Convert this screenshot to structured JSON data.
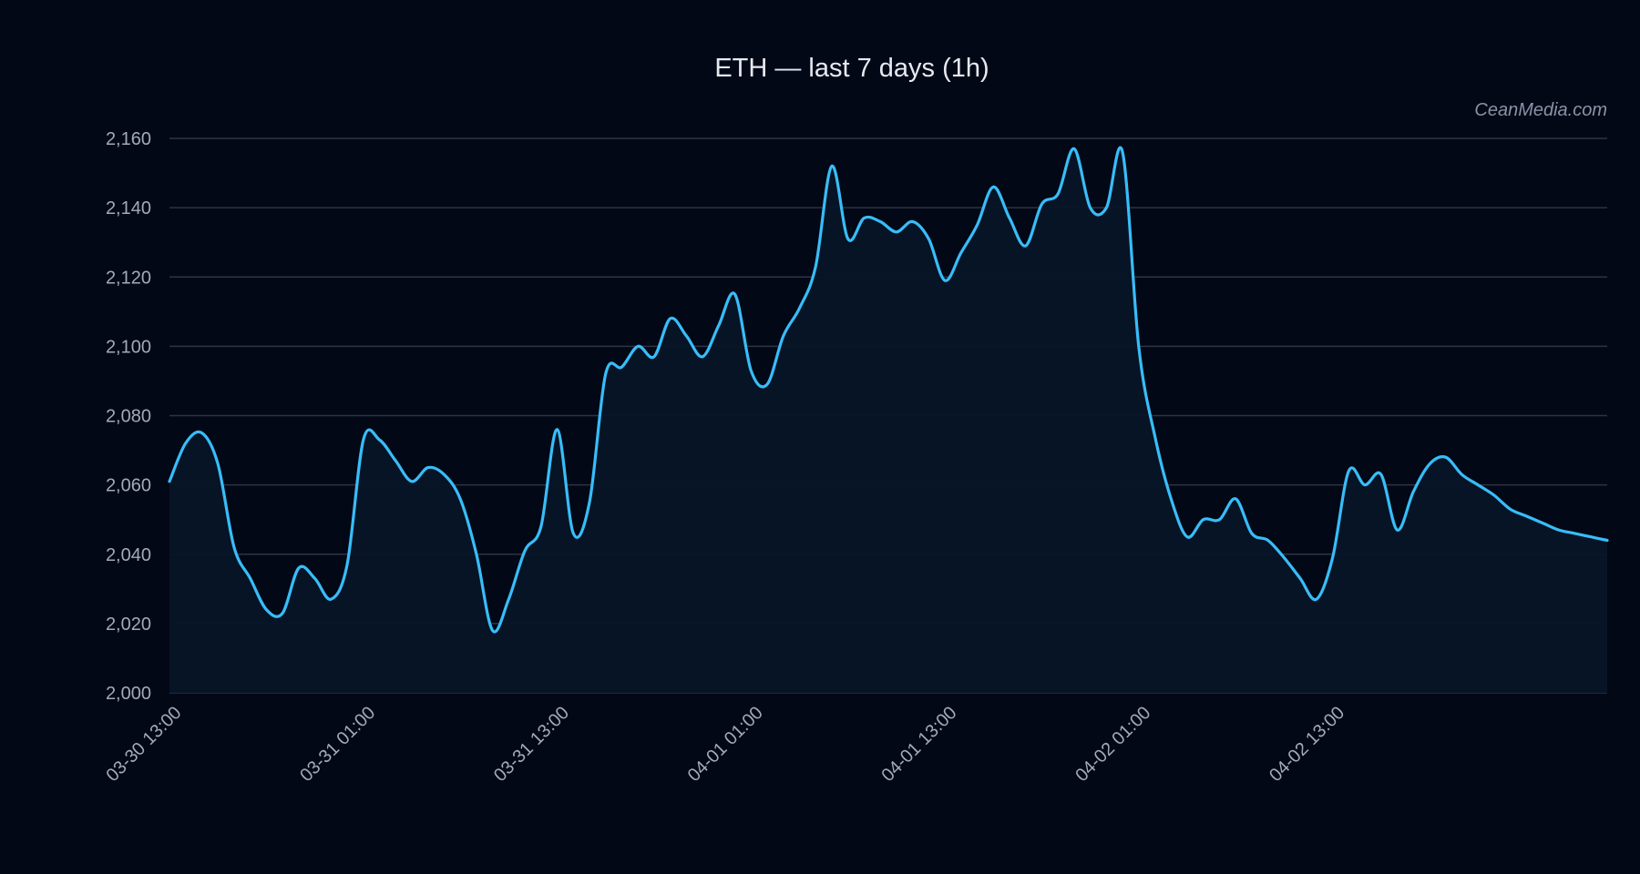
{
  "watermark": "CeanMedia.com",
  "colors": {
    "background": "#030817",
    "line": "#38bdf8",
    "area_fill": "#071527",
    "grid": "#2b3445"
  },
  "chart_data": {
    "type": "area",
    "title": "ETH — last 7 days (1h)",
    "xlabel": "",
    "ylabel": "",
    "ylim": [
      2000,
      2160
    ],
    "yticks": [
      2000,
      2020,
      2040,
      2060,
      2080,
      2100,
      2120,
      2140,
      2160
    ],
    "ytick_labels": [
      "2,000",
      "2,020",
      "2,040",
      "2,060",
      "2,080",
      "2,100",
      "2,120",
      "2,140",
      "2,160"
    ],
    "xlim": [
      "03-30 13:00",
      "04-03 06:00"
    ],
    "xticks": [
      "03-30 13:00",
      "03-31 01:00",
      "03-31 13:00",
      "04-01 01:00",
      "04-01 13:00",
      "04-02 01:00",
      "04-02 13:00"
    ],
    "grid": true,
    "legend": "none",
    "series": [
      {
        "x": [
          "03-30 13:00",
          "03-30 14:00",
          "03-30 15:00",
          "03-30 16:00",
          "03-30 17:00",
          "03-30 18:00",
          "03-30 19:00",
          "03-30 20:00",
          "03-30 21:00",
          "03-30 22:00",
          "03-30 23:00",
          "03-31 00:00",
          "03-31 01:00",
          "03-31 02:00",
          "03-31 03:00",
          "03-31 04:00",
          "03-31 05:00",
          "03-31 06:00",
          "03-31 07:00",
          "03-31 08:00",
          "03-31 09:00",
          "03-31 10:00",
          "03-31 11:00",
          "03-31 12:00",
          "03-31 13:00",
          "03-31 14:00",
          "03-31 15:00",
          "03-31 16:00",
          "03-31 17:00",
          "03-31 18:00",
          "03-31 19:00",
          "03-31 20:00",
          "03-31 21:00",
          "03-31 22:00",
          "03-31 23:00",
          "04-01 00:00",
          "04-01 01:00",
          "04-01 02:00",
          "04-01 03:00",
          "04-01 04:00",
          "04-01 05:00",
          "04-01 06:00",
          "04-01 07:00",
          "04-01 08:00",
          "04-01 09:00",
          "04-01 10:00",
          "04-01 11:00",
          "04-01 12:00",
          "04-01 13:00",
          "04-01 14:00",
          "04-01 15:00",
          "04-01 16:00",
          "04-01 17:00",
          "04-01 18:00",
          "04-01 19:00",
          "04-01 20:00",
          "04-01 21:00",
          "04-01 22:00",
          "04-01 23:00",
          "04-02 00:00",
          "04-02 01:00",
          "04-02 02:00",
          "04-02 03:00",
          "04-02 04:00",
          "04-02 05:00",
          "04-02 06:00",
          "04-02 07:00",
          "04-02 08:00",
          "04-02 09:00",
          "04-02 10:00",
          "04-02 11:00",
          "04-02 12:00",
          "04-02 13:00",
          "04-02 14:00",
          "04-02 15:00",
          "04-02 16:00",
          "04-02 17:00",
          "04-02 18:00",
          "04-02 19:00",
          "04-02 20:00",
          "04-02 21:00",
          "04-02 22:00",
          "04-02 23:00",
          "04-03 00:00",
          "04-03 01:00",
          "04-03 02:00",
          "04-03 03:00",
          "04-03 04:00",
          "04-03 05:00",
          "04-03 06:00"
        ],
        "values": [
          2061,
          2072,
          2075,
          2066,
          2042,
          2033,
          2024,
          2023,
          2036,
          2033,
          2027,
          2037,
          2073,
          2073,
          2067,
          2061,
          2065,
          2063,
          2056,
          2040,
          2018,
          2027,
          2041,
          2048,
          2076,
          2046,
          2055,
          2092,
          2094,
          2100,
          2097,
          2108,
          2103,
          2097,
          2106,
          2115,
          2093,
          2089,
          2103,
          2111,
          2123,
          2152,
          2131,
          2137,
          2136,
          2133,
          2136,
          2131,
          2119,
          2127,
          2135,
          2146,
          2137,
          2129,
          2141,
          2144,
          2157,
          2140,
          2140,
          2156,
          2100,
          2074,
          2056,
          2045,
          2050,
          2050,
          2056,
          2046,
          2044,
          2039,
          2033,
          2027,
          2039,
          2064,
          2060,
          2063,
          2047,
          2058,
          2066,
          2068,
          2063,
          2060,
          2057,
          2053,
          2051,
          2049,
          2047,
          2046,
          2045,
          2044
        ]
      }
    ]
  }
}
